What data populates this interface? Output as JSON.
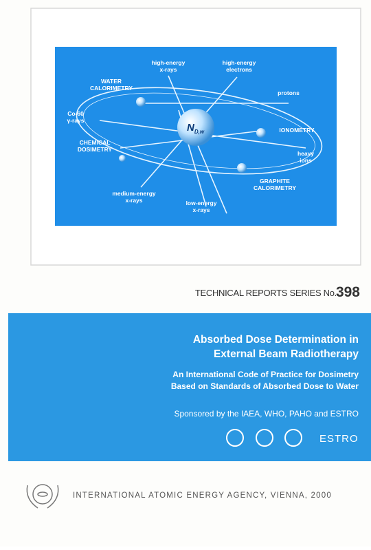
{
  "cover": {
    "diagram": {
      "center": {
        "symbol": "N",
        "subscript": "D,w"
      },
      "labels": [
        [
          "high-energy",
          "x-rays"
        ],
        [
          "high-energy",
          "electrons"
        ],
        [
          "WATER",
          "CALORIMETRY"
        ],
        [
          "protons"
        ],
        [
          "Co-60",
          "γ-rays"
        ],
        [
          "IONOMETRY"
        ],
        [
          "CHEMICAL",
          "DOSIMETRY"
        ],
        [
          "heavy",
          "ions"
        ],
        [
          "GRAPHITE",
          "CALORIMETRY"
        ],
        [
          "medium-energy",
          "x-rays"
        ],
        [
          "low-energy",
          "x-rays"
        ]
      ]
    },
    "series": {
      "label": "TECHNICAL REPORTS SERIES No.",
      "number": "398"
    },
    "band": {
      "title": [
        "Absorbed Dose Determination in",
        "External Beam Radiotherapy"
      ],
      "subtitle": [
        "An International Code of Practice for Dosimetry",
        "Based on Standards of Absorbed Dose to Water"
      ],
      "sponsors": "Sponsored by the IAEA, WHO, PAHO and ESTRO",
      "logo_text": "ESTRO"
    },
    "footer": {
      "publisher": "INTERNATIONAL ATOMIC ENERGY AGENCY, VIENNA, 2000"
    }
  }
}
